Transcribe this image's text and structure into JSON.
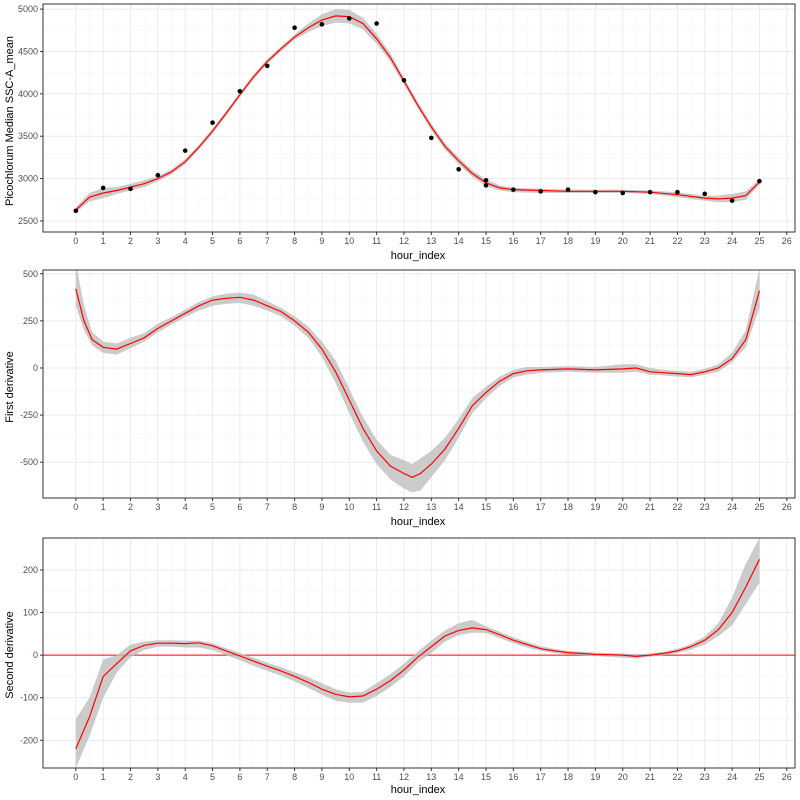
{
  "colors": {
    "background": "#ffffff",
    "panel_border": "#333333",
    "grid_major": "#ebebeb",
    "grid_minor": "#f5f5f5",
    "fit_line": "#ff0000",
    "ribbon": "#bebebe",
    "points": "#000000",
    "zero_line": "#ff0000"
  },
  "chart_data": [
    {
      "type": "scatter",
      "xlabel": "hour_index",
      "ylabel": "Picochlorum Median SSC-A_mean",
      "xlim": [
        -1.2,
        26.3
      ],
      "ylim": [
        2370,
        5060
      ],
      "x_ticks": [
        0,
        1,
        2,
        3,
        4,
        5,
        6,
        7,
        8,
        9,
        10,
        11,
        12,
        13,
        14,
        15,
        16,
        17,
        18,
        19,
        20,
        21,
        22,
        23,
        24,
        25,
        26
      ],
      "y_ticks": [
        2500,
        3000,
        3500,
        4000,
        4500,
        5000
      ],
      "grid": true,
      "points": {
        "x": [
          0,
          1,
          2,
          3,
          4,
          5,
          6,
          7,
          8,
          9,
          10,
          11,
          12,
          13,
          14,
          15,
          15,
          16,
          17,
          18,
          19,
          20,
          21,
          22,
          23,
          24,
          25
        ],
        "y": [
          2620,
          2890,
          2880,
          3040,
          3330,
          3660,
          4030,
          4330,
          4780,
          4820,
          4890,
          4830,
          4160,
          3480,
          3110,
          2980,
          2920,
          2870,
          2850,
          2870,
          2840,
          2830,
          2840,
          2840,
          2820,
          2740,
          2970
        ]
      },
      "series": [
        {
          "x": [
            0,
            0.5,
            1,
            1.5,
            2,
            2.5,
            3,
            3.5,
            4,
            4.5,
            5,
            5.5,
            6,
            6.5,
            7,
            7.5,
            8,
            8.5,
            9,
            9.5,
            10,
            10.5,
            11,
            11.5,
            12,
            12.5,
            13,
            13.5,
            14,
            14.5,
            15,
            15.5,
            16,
            17,
            18,
            19,
            20,
            21,
            22,
            23,
            23.5,
            24,
            24.5,
            25
          ],
          "y": [
            2630,
            2780,
            2830,
            2860,
            2900,
            2940,
            3000,
            3080,
            3200,
            3370,
            3560,
            3770,
            3990,
            4200,
            4380,
            4530,
            4670,
            4780,
            4870,
            4920,
            4910,
            4830,
            4650,
            4430,
            4150,
            3870,
            3610,
            3380,
            3210,
            3060,
            2950,
            2890,
            2870,
            2860,
            2850,
            2850,
            2850,
            2840,
            2810,
            2770,
            2760,
            2770,
            2800,
            2960
          ],
          "lower": [
            2600,
            2730,
            2770,
            2820,
            2860,
            2900,
            2970,
            3050,
            3170,
            3340,
            3530,
            3740,
            3960,
            4170,
            4350,
            4500,
            4640,
            4730,
            4800,
            4840,
            4830,
            4760,
            4590,
            4380,
            4110,
            3830,
            3570,
            3340,
            3170,
            3020,
            2910,
            2860,
            2840,
            2830,
            2830,
            2830,
            2830,
            2820,
            2780,
            2740,
            2720,
            2720,
            2750,
            2930
          ],
          "upper": [
            2660,
            2830,
            2890,
            2900,
            2940,
            2980,
            3030,
            3110,
            3230,
            3400,
            3590,
            3800,
            4020,
            4230,
            4410,
            4560,
            4700,
            4830,
            4940,
            5000,
            4990,
            4900,
            4710,
            4480,
            4190,
            3910,
            3650,
            3420,
            3250,
            3100,
            2990,
            2920,
            2890,
            2880,
            2870,
            2870,
            2870,
            2860,
            2840,
            2800,
            2800,
            2820,
            2850,
            2990
          ]
        }
      ]
    },
    {
      "type": "line",
      "xlabel": "hour_index",
      "ylabel": "First derivative",
      "xlim": [
        -1.2,
        26.3
      ],
      "ylim": [
        -690,
        520
      ],
      "x_ticks": [
        0,
        1,
        2,
        3,
        4,
        5,
        6,
        7,
        8,
        9,
        10,
        11,
        12,
        13,
        14,
        15,
        16,
        17,
        18,
        19,
        20,
        21,
        22,
        23,
        24,
        25,
        26
      ],
      "y_ticks": [
        -500,
        -250,
        0,
        250,
        500
      ],
      "grid": true,
      "series": [
        {
          "x": [
            0,
            0.3,
            0.6,
            1,
            1.5,
            2,
            2.5,
            3,
            3.5,
            4,
            4.5,
            5,
            5.5,
            6,
            6.5,
            7,
            7.5,
            8,
            8.5,
            9,
            9.5,
            10,
            10.5,
            11,
            11.5,
            12,
            12.3,
            12.6,
            13,
            13.5,
            14,
            14.5,
            15,
            15.5,
            16,
            16.5,
            17,
            18,
            19,
            20,
            20.5,
            21,
            21.5,
            22,
            22.5,
            23,
            23.5,
            24,
            24.5,
            25
          ],
          "y": [
            420,
            250,
            150,
            110,
            100,
            130,
            160,
            210,
            250,
            290,
            330,
            360,
            370,
            375,
            360,
            330,
            300,
            250,
            190,
            100,
            -20,
            -170,
            -320,
            -440,
            -520,
            -560,
            -580,
            -560,
            -510,
            -430,
            -320,
            -200,
            -130,
            -70,
            -30,
            -15,
            -10,
            -5,
            -10,
            -5,
            0,
            -20,
            -25,
            -30,
            -35,
            -20,
            0,
            50,
            150,
            410
          ],
          "lower": [
            330,
            200,
            120,
            80,
            70,
            105,
            140,
            190,
            230,
            270,
            305,
            330,
            340,
            345,
            330,
            305,
            275,
            225,
            160,
            60,
            -80,
            -240,
            -390,
            -510,
            -590,
            -640,
            -660,
            -650,
            -580,
            -490,
            -370,
            -240,
            -160,
            -95,
            -50,
            -35,
            -25,
            -20,
            -25,
            -25,
            -20,
            -35,
            -40,
            -45,
            -50,
            -35,
            -20,
            30,
            110,
            320
          ],
          "upper": [
            560,
            330,
            190,
            140,
            130,
            160,
            185,
            235,
            270,
            310,
            350,
            380,
            395,
            400,
            390,
            355,
            320,
            275,
            220,
            140,
            40,
            -110,
            -260,
            -380,
            -460,
            -490,
            -510,
            -480,
            -440,
            -370,
            -270,
            -160,
            -100,
            -45,
            -10,
            5,
            5,
            10,
            5,
            20,
            20,
            0,
            -10,
            -15,
            -20,
            -5,
            20,
            80,
            200,
            530
          ]
        }
      ]
    },
    {
      "type": "line",
      "xlabel": "hour_index",
      "ylabel": "Second derivative",
      "xlim": [
        -1.2,
        26.3
      ],
      "ylim": [
        -265,
        275
      ],
      "x_ticks": [
        0,
        1,
        2,
        3,
        4,
        5,
        6,
        7,
        8,
        9,
        10,
        11,
        12,
        13,
        14,
        15,
        16,
        17,
        18,
        19,
        20,
        21,
        22,
        23,
        24,
        25,
        26
      ],
      "y_ticks": [
        -200,
        -100,
        0,
        100,
        200
      ],
      "grid": true,
      "reference_line_y": 0,
      "series": [
        {
          "x": [
            0,
            0.5,
            1,
            1.5,
            2,
            2.5,
            3,
            3.5,
            4,
            4.5,
            5,
            5.5,
            6,
            6.5,
            7,
            7.5,
            8,
            8.5,
            9,
            9.5,
            10,
            10.5,
            11,
            11.5,
            12,
            12.5,
            13,
            13.5,
            14,
            14.5,
            15,
            15.5,
            16,
            16.5,
            17,
            17.5,
            18,
            19,
            20,
            20.5,
            21,
            21.5,
            22,
            22.5,
            23,
            23.5,
            24,
            24.5,
            25
          ],
          "y": [
            -220,
            -145,
            -50,
            -20,
            10,
            23,
            28,
            28,
            27,
            29,
            22,
            10,
            -2,
            -14,
            -26,
            -37,
            -50,
            -64,
            -80,
            -92,
            -98,
            -96,
            -80,
            -60,
            -35,
            -5,
            20,
            45,
            58,
            64,
            60,
            48,
            35,
            25,
            15,
            10,
            6,
            2,
            0,
            -3,
            0,
            4,
            10,
            20,
            35,
            60,
            100,
            160,
            225
          ],
          "lower": [
            -265,
            -190,
            -100,
            -40,
            -5,
            12,
            20,
            20,
            18,
            18,
            12,
            0,
            -12,
            -25,
            -37,
            -48,
            -62,
            -77,
            -93,
            -107,
            -112,
            -112,
            -96,
            -75,
            -50,
            -18,
            5,
            32,
            47,
            53,
            52,
            40,
            28,
            18,
            10,
            5,
            2,
            -2,
            -6,
            -8,
            -4,
            0,
            5,
            13,
            25,
            45,
            70,
            120,
            170
          ],
          "upper": [
            -150,
            -100,
            -10,
            0,
            25,
            32,
            35,
            35,
            34,
            34,
            28,
            16,
            5,
            -6,
            -18,
            -28,
            -40,
            -52,
            -66,
            -80,
            -88,
            -86,
            -66,
            -45,
            -20,
            8,
            34,
            58,
            75,
            83,
            68,
            55,
            42,
            31,
            21,
            15,
            10,
            6,
            4,
            2,
            4,
            8,
            15,
            26,
            44,
            75,
            135,
            215,
            275
          ]
        }
      ]
    }
  ]
}
